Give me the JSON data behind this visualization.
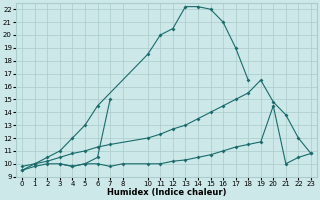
{
  "xlabel": "Humidex (Indice chaleur)",
  "xlim": [
    -0.5,
    23.5
  ],
  "ylim": [
    9,
    22.5
  ],
  "yticks": [
    9,
    10,
    11,
    12,
    13,
    14,
    15,
    16,
    17,
    18,
    19,
    20,
    21,
    22
  ],
  "xticks": [
    0,
    1,
    2,
    3,
    4,
    5,
    6,
    7,
    8,
    10,
    11,
    12,
    13,
    14,
    15,
    16,
    17,
    18,
    19,
    20,
    21,
    22,
    23
  ],
  "background_color": "#cce8e8",
  "grid_color": "#aacccc",
  "line_color": "#1a6b6b",
  "line_top_x": [
    0,
    1,
    2,
    3,
    4,
    5,
    6,
    10,
    11,
    12,
    13,
    14,
    15,
    16,
    17,
    18
  ],
  "line_top_y": [
    9.5,
    10.0,
    10.5,
    11.0,
    12.0,
    13.0,
    14.5,
    18.5,
    20.0,
    20.5,
    22.2,
    22.2,
    22.0,
    21.0,
    19.0,
    16.5
  ],
  "line_mid_x": [
    0,
    1,
    2,
    3,
    4,
    5,
    6,
    7,
    10,
    11,
    12,
    13,
    14,
    15,
    16,
    17,
    18,
    19,
    20,
    21,
    22,
    23
  ],
  "line_mid_y": [
    9.8,
    10.0,
    10.2,
    10.5,
    10.8,
    11.0,
    11.3,
    11.5,
    12.0,
    12.3,
    12.7,
    13.0,
    13.5,
    14.0,
    14.5,
    15.0,
    15.5,
    16.5,
    14.8,
    13.8,
    12.0,
    10.8
  ],
  "line_bot_x": [
    0,
    1,
    2,
    3,
    4,
    5,
    6,
    7,
    8,
    10,
    11,
    12,
    13,
    14,
    15,
    16,
    17,
    18,
    19,
    20,
    21,
    22,
    23
  ],
  "line_bot_y": [
    9.5,
    9.8,
    10.0,
    10.0,
    9.8,
    10.0,
    10.0,
    9.8,
    10.0,
    10.0,
    10.0,
    10.2,
    10.3,
    10.5,
    10.7,
    11.0,
    11.3,
    11.5,
    11.7,
    14.5,
    10.0,
    10.5,
    10.8
  ],
  "line2_x": [
    3,
    4,
    5,
    6,
    7
  ],
  "line2_y": [
    10.0,
    9.8,
    10.0,
    10.5,
    15.0
  ]
}
